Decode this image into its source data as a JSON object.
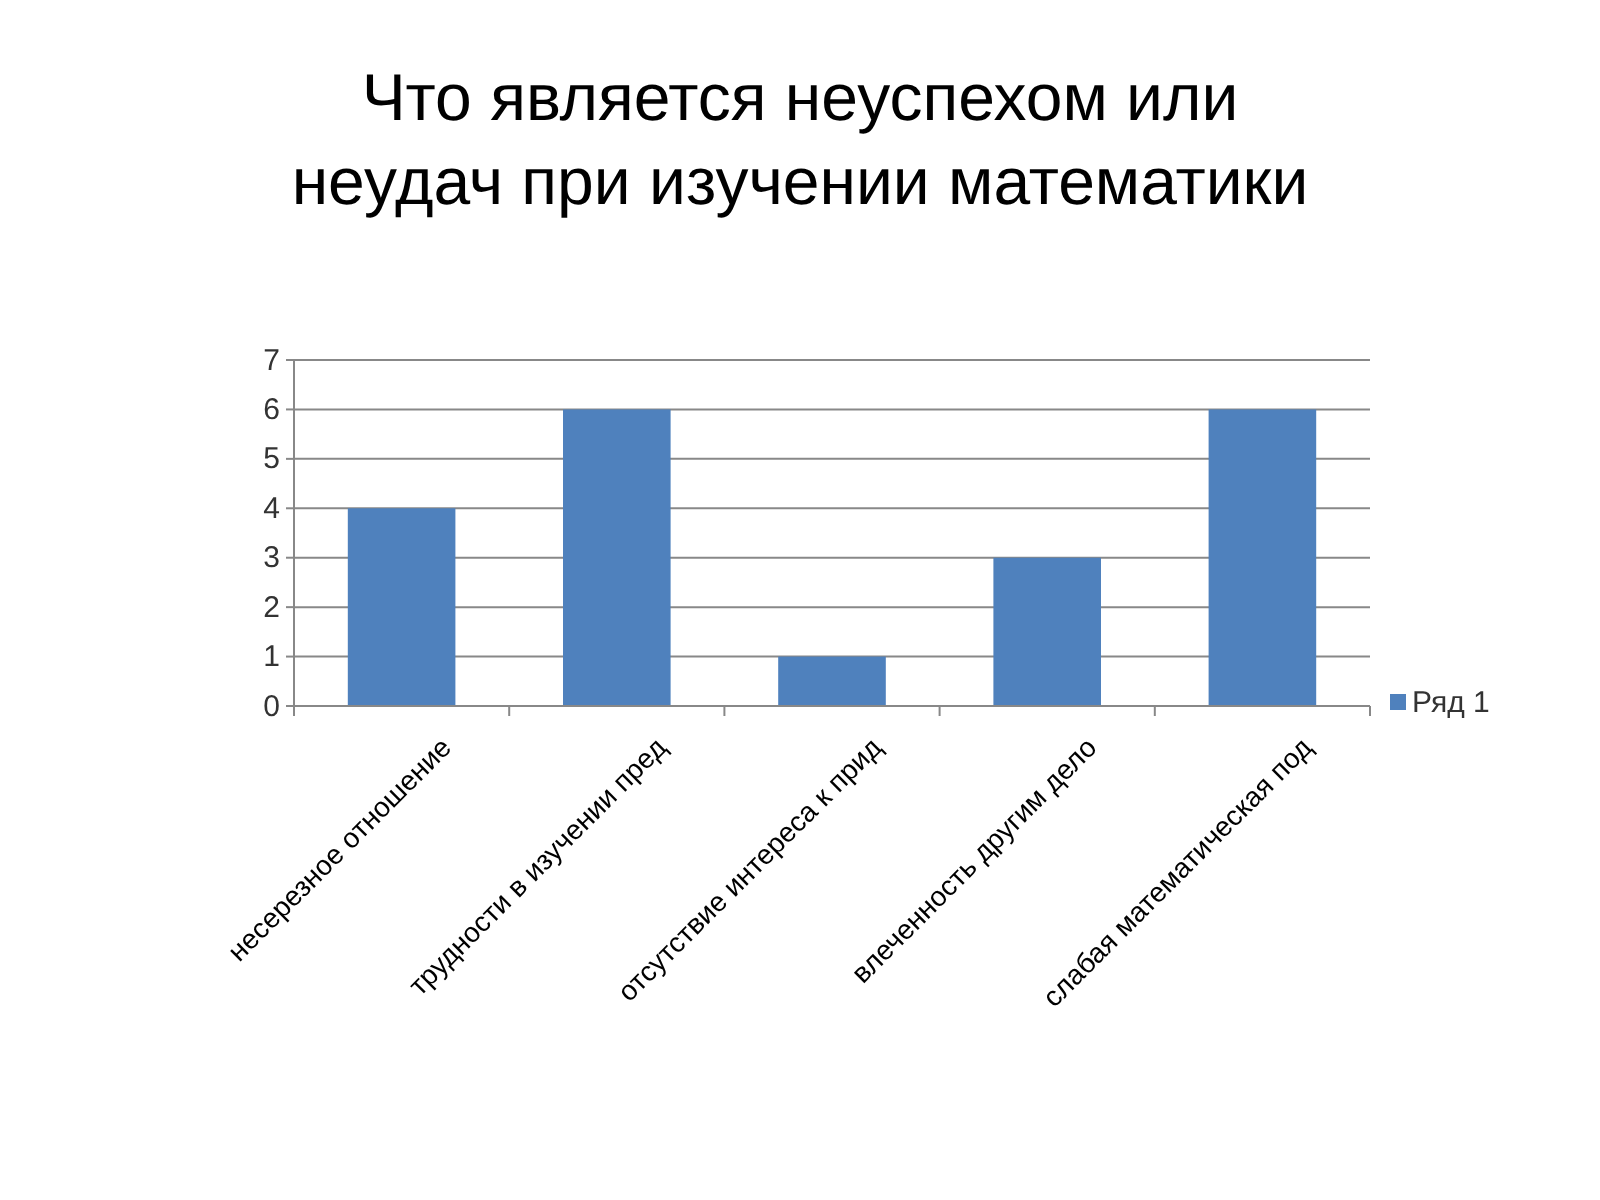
{
  "chart_data": {
    "type": "bar",
    "title": "Что является неуспехом или неудач при изучении математики",
    "categories": [
      "несерезное отношение",
      "трудности в изучении пред",
      "отсутствие интереса к прид",
      "влеченность другим дело",
      "слабая математическая под"
    ],
    "series": [
      {
        "name": "Ряд 1",
        "color": "#4f81bd",
        "values": [
          4,
          6,
          1,
          3,
          6
        ]
      }
    ],
    "ylim": [
      0,
      7
    ],
    "yticks": [
      0,
      1,
      2,
      3,
      4,
      5,
      6,
      7
    ],
    "grid": "y",
    "legend": "right"
  }
}
